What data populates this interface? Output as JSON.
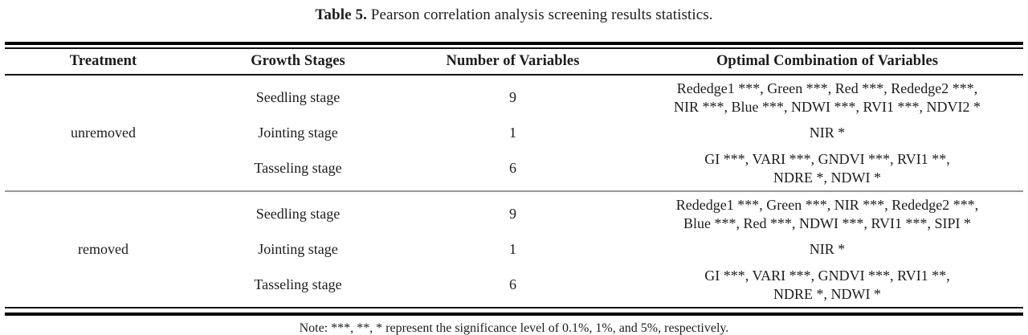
{
  "caption": {
    "label": "Table 5.",
    "text": "Pearson correlation analysis screening results statistics."
  },
  "table": {
    "headers": [
      "Treatment",
      "Growth Stages",
      "Number of Variables",
      "Optimal Combination of Variables"
    ],
    "sections": [
      {
        "treatment": "unremoved",
        "rows": [
          {
            "stage": "Seedling stage",
            "count": "9",
            "combo": [
              "Rededge1 ***, Green ***, Red ***, Rededge2 ***,",
              "NIR ***, Blue ***, NDWI ***, RVI1 ***, NDVI2 *"
            ]
          },
          {
            "stage": "Jointing stage",
            "count": "1",
            "combo": [
              "NIR *"
            ]
          },
          {
            "stage": "Tasseling stage",
            "count": "6",
            "combo": [
              "GI ***, VARI ***, GNDVI ***, RVI1 **,",
              "NDRE *, NDWI *"
            ]
          }
        ]
      },
      {
        "treatment": "removed",
        "rows": [
          {
            "stage": "Seedling stage",
            "count": "9",
            "combo": [
              "Rededge1 ***, Green ***, NIR ***, Rededge2 ***,",
              "Blue ***, Red ***, NDWI ***, RVI1 ***, SIPI *"
            ]
          },
          {
            "stage": "Jointing stage",
            "count": "1",
            "combo": [
              "NIR *"
            ]
          },
          {
            "stage": "Tasseling stage",
            "count": "6",
            "combo": [
              "GI ***, VARI ***, GNDVI ***, RVI1 **,",
              "NDRE *, NDWI *"
            ]
          }
        ]
      }
    ]
  },
  "note": "Note: ***, **, * represent the significance level of 0.1%, 1%, and 5%, respectively."
}
